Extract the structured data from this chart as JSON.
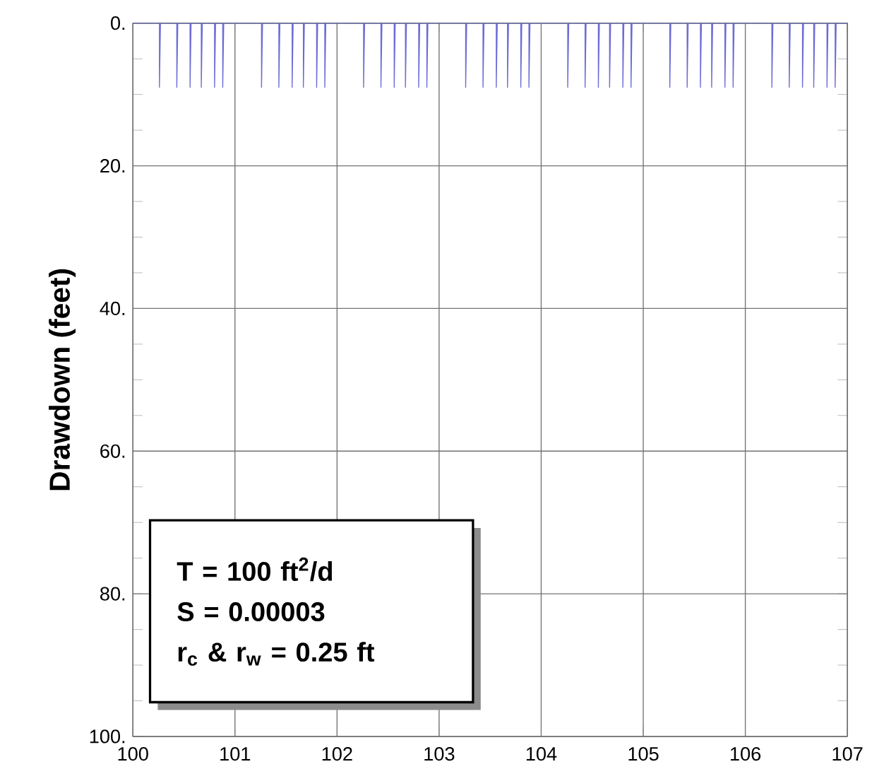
{
  "chart_data": {
    "type": "line",
    "ylabel": "Drawdown (feet)",
    "annotations": [
      "T = 100 ft$^{2}$/d",
      "S = 0.00003",
      "r$_{c}$ & r$_{w}$ = 0.25 ft"
    ],
    "xlim": [
      100,
      107
    ],
    "ylim": [
      100,
      0
    ],
    "xticks": [
      100,
      101,
      102,
      103,
      104,
      105,
      106,
      107
    ],
    "yticks": [
      {
        "value": 0,
        "label": "0."
      },
      {
        "value": 5,
        "label": null
      },
      {
        "value": 10,
        "label": null
      },
      {
        "value": 15,
        "label": null
      },
      {
        "value": 20,
        "label": "20."
      },
      {
        "value": 25,
        "label": null
      },
      {
        "value": 30,
        "label": null
      },
      {
        "value": 35,
        "label": null
      },
      {
        "value": 40,
        "label": "40."
      },
      {
        "value": 45,
        "label": null
      },
      {
        "value": 50,
        "label": null
      },
      {
        "value": 55,
        "label": null
      },
      {
        "value": 60,
        "label": "60."
      },
      {
        "value": 65,
        "label": null
      },
      {
        "value": 70,
        "label": null
      },
      {
        "value": 75,
        "label": null
      },
      {
        "value": 80,
        "label": "80."
      },
      {
        "value": 85,
        "label": null
      },
      {
        "value": 90,
        "label": null
      },
      {
        "value": 95,
        "label": null
      },
      {
        "value": 100,
        "label": "100."
      }
    ],
    "grid": true,
    "series": [
      {
        "color": "#6b6bd6",
        "x": [
          100,
          100.26,
          100.26,
          100.27,
          100.43,
          100.43,
          100.44,
          100.56,
          100.56,
          100.57,
          100.67,
          100.67,
          100.68,
          100.8,
          100.8,
          100.81,
          100.88,
          100.88,
          100.89,
          101.26,
          101.26,
          101.27,
          101.43,
          101.43,
          101.44,
          101.56,
          101.56,
          101.57,
          101.67,
          101.67,
          101.68,
          101.8,
          101.8,
          101.81,
          101.88,
          101.88,
          101.89,
          102.26,
          102.26,
          102.27,
          102.43,
          102.43,
          102.44,
          102.56,
          102.56,
          102.57,
          102.67,
          102.67,
          102.68,
          102.8,
          102.8,
          102.81,
          102.88,
          102.88,
          102.89,
          103.26,
          103.26,
          103.27,
          103.43,
          103.43,
          103.44,
          103.56,
          103.56,
          103.57,
          103.67,
          103.67,
          103.68,
          103.8,
          103.8,
          103.81,
          103.88,
          103.88,
          103.89,
          104.26,
          104.26,
          104.27,
          104.43,
          104.43,
          104.44,
          104.56,
          104.56,
          104.57,
          104.67,
          104.67,
          104.68,
          104.8,
          104.8,
          104.81,
          104.88,
          104.88,
          104.89,
          105.26,
          105.26,
          105.27,
          105.43,
          105.43,
          105.44,
          105.56,
          105.56,
          105.57,
          105.67,
          105.67,
          105.68,
          105.8,
          105.8,
          105.81,
          105.88,
          105.88,
          105.89,
          106.26,
          106.26,
          106.27,
          106.43,
          106.43,
          106.44,
          106.56,
          106.56,
          106.57,
          106.67,
          106.67,
          106.68,
          106.8,
          106.8,
          106.81,
          106.88,
          106.88,
          106.89,
          107
        ],
        "values": [
          0,
          0,
          9,
          0,
          0,
          9,
          0,
          0,
          9,
          0,
          0,
          9,
          0,
          0,
          9,
          0,
          0,
          9,
          0,
          0,
          9,
          0,
          0,
          9,
          0,
          0,
          9,
          0,
          0,
          9,
          0,
          0,
          9,
          0,
          0,
          9,
          0,
          0,
          9,
          0,
          0,
          9,
          0,
          0,
          9,
          0,
          0,
          9,
          0,
          0,
          9,
          0,
          0,
          9,
          0,
          0,
          9,
          0,
          0,
          9,
          0,
          0,
          9,
          0,
          0,
          9,
          0,
          0,
          9,
          0,
          0,
          9,
          0,
          0,
          9,
          0,
          0,
          9,
          0,
          0,
          9,
          0,
          0,
          9,
          0,
          0,
          9,
          0,
          0,
          9,
          0,
          0,
          9,
          0,
          0,
          9,
          0,
          0,
          9,
          0,
          0,
          9,
          0,
          0,
          9,
          0,
          0,
          9,
          0,
          0,
          9,
          0,
          0,
          9,
          0,
          0,
          9,
          0,
          0,
          9,
          0,
          0,
          9,
          0,
          0,
          9,
          0,
          0
        ]
      }
    ]
  }
}
